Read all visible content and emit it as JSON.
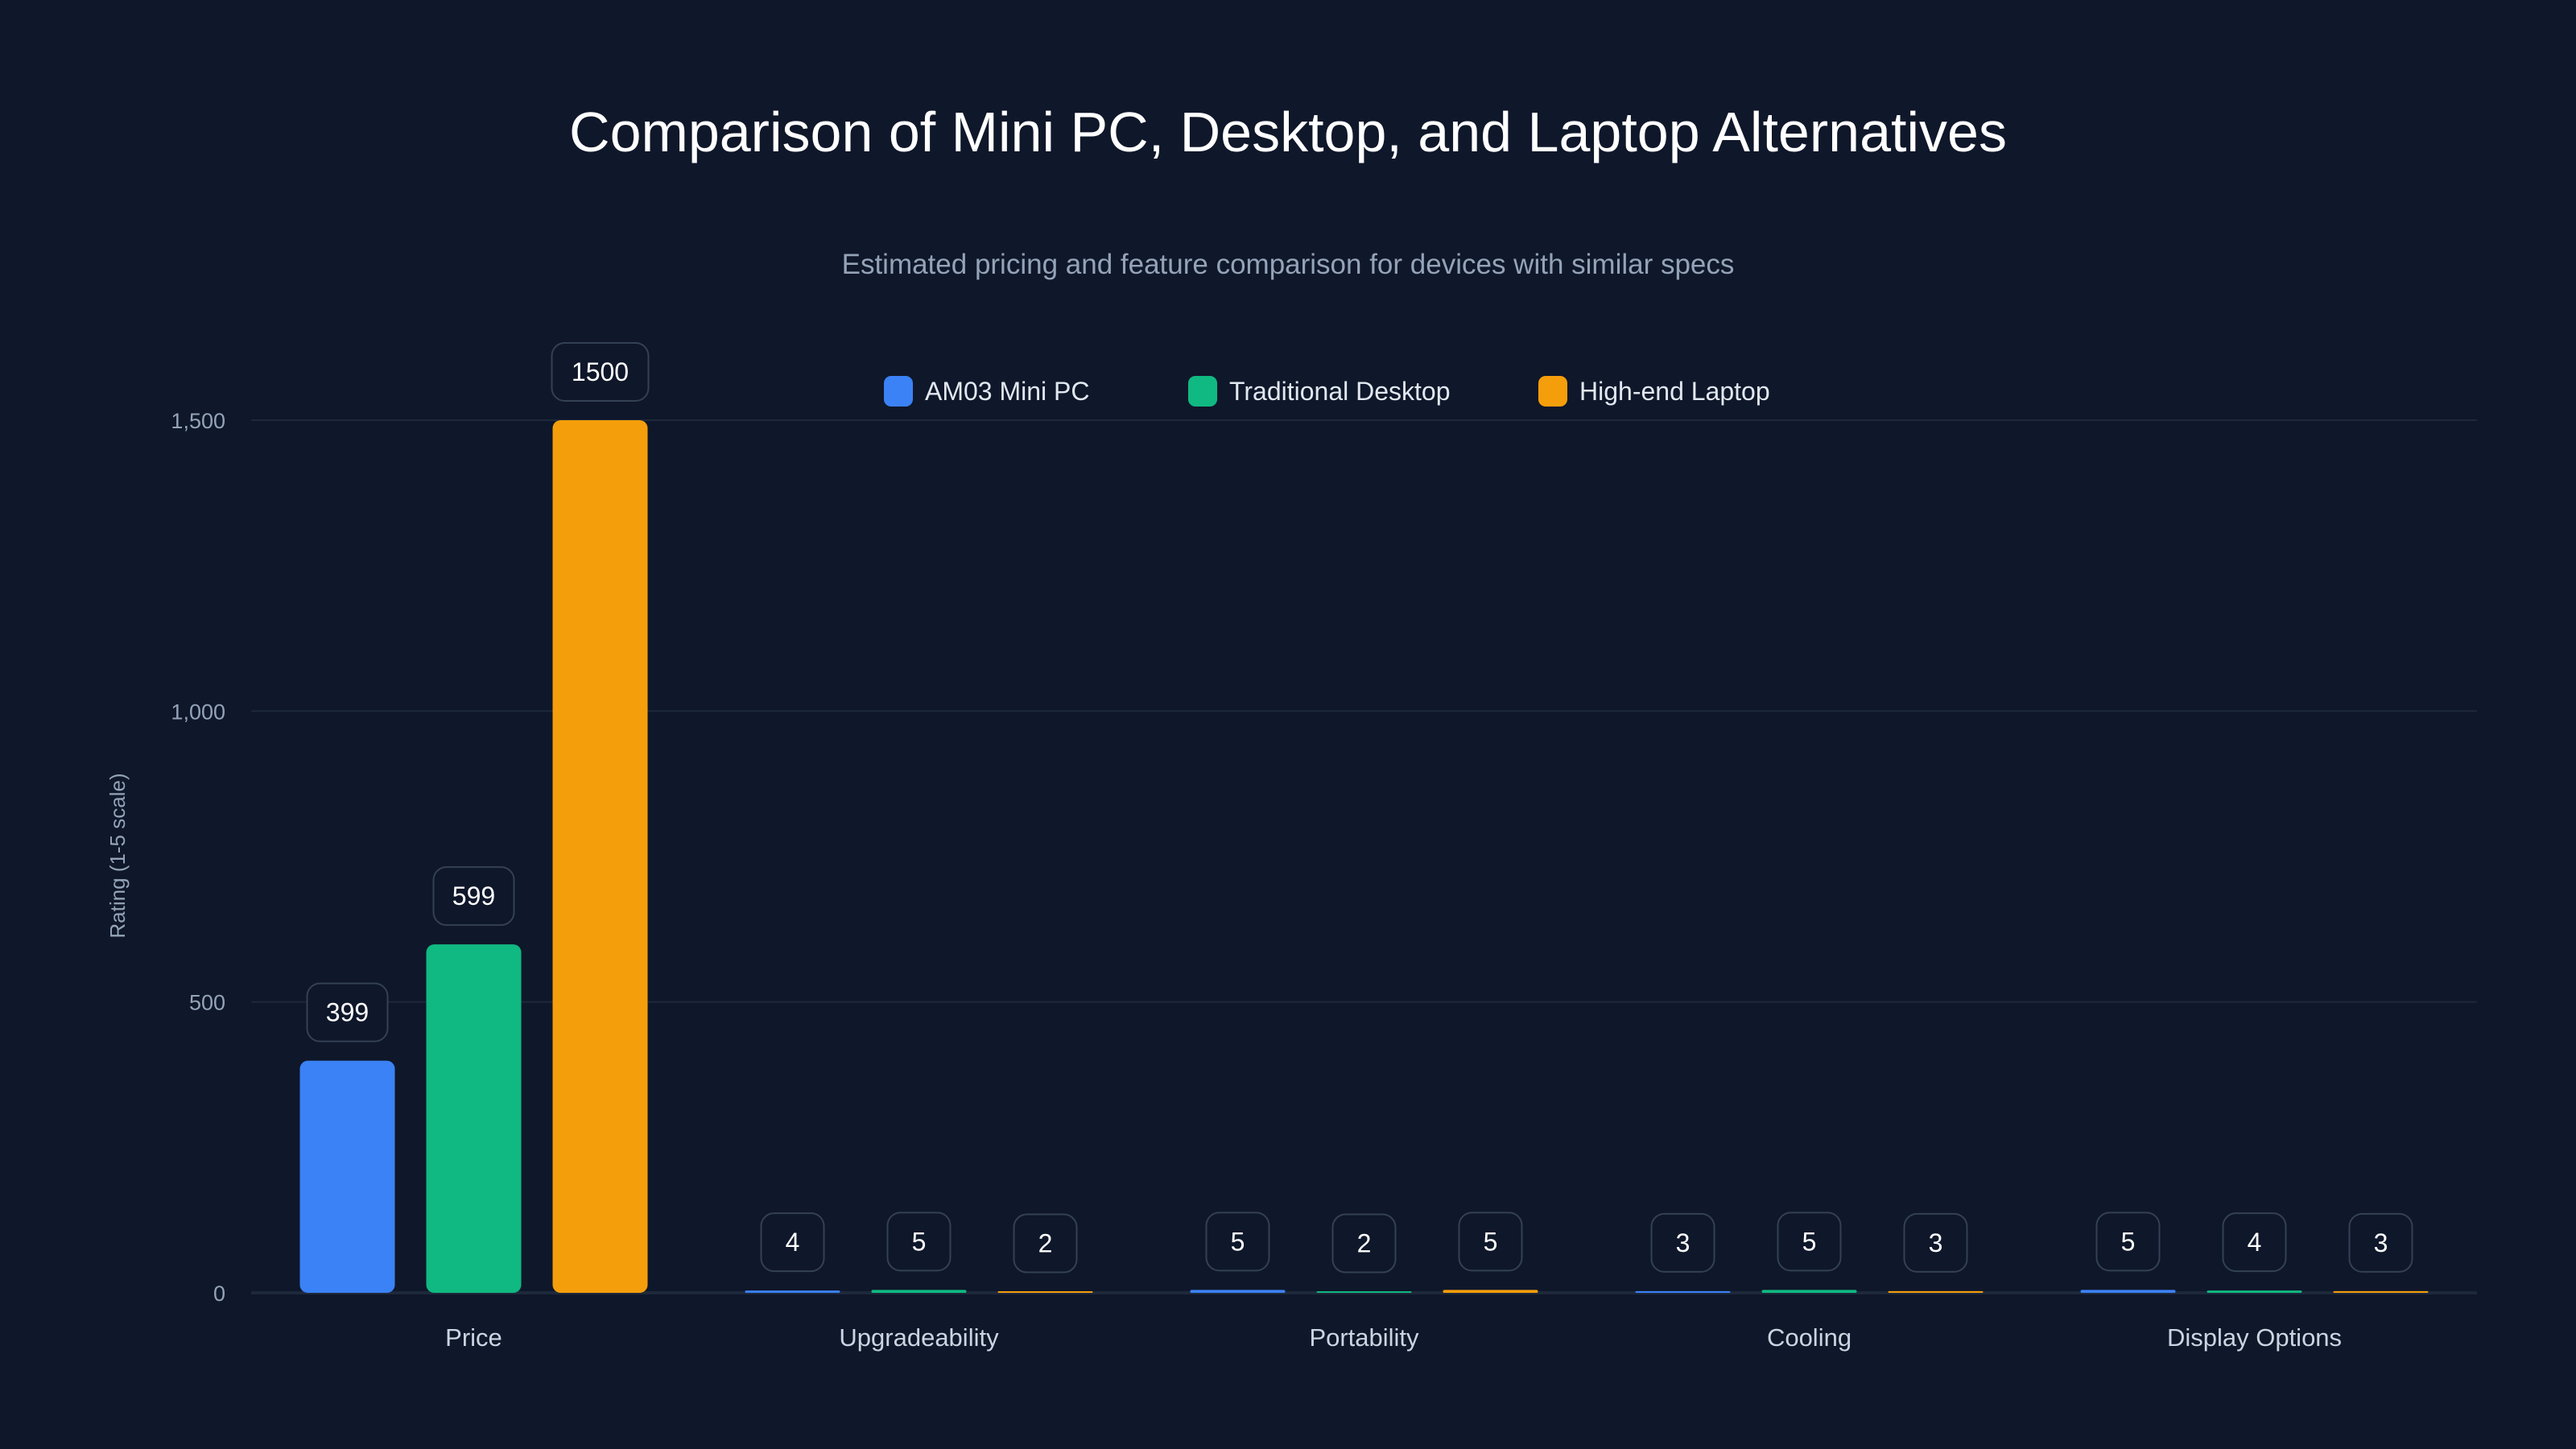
{
  "chart_data": {
    "type": "bar",
    "title": "Comparison of Mini PC, Desktop, and Laptop Alternatives",
    "subtitle": "Estimated pricing and feature comparison for devices with similar specs",
    "xlabel": "",
    "ylabel": "Rating (1-5 scale)",
    "ylim": [
      0,
      1500
    ],
    "yticks": [
      0,
      500,
      1000,
      1500
    ],
    "ytick_labels": [
      "0",
      "500",
      "1,000",
      "1,500"
    ],
    "grid": true,
    "legend_position": "top-center",
    "categories": [
      "Price",
      "Upgradeability",
      "Portability",
      "Cooling",
      "Display Options"
    ],
    "series": [
      {
        "name": "AM03 Mini PC",
        "color": "#3b82f6",
        "values": [
          399,
          4,
          5,
          3,
          5
        ]
      },
      {
        "name": "Traditional Desktop",
        "color": "#10b981",
        "values": [
          599,
          5,
          2,
          5,
          4
        ]
      },
      {
        "name": "High-end Laptop",
        "color": "#f59e0b",
        "values": [
          1500,
          2,
          5,
          3,
          3
        ]
      }
    ]
  }
}
